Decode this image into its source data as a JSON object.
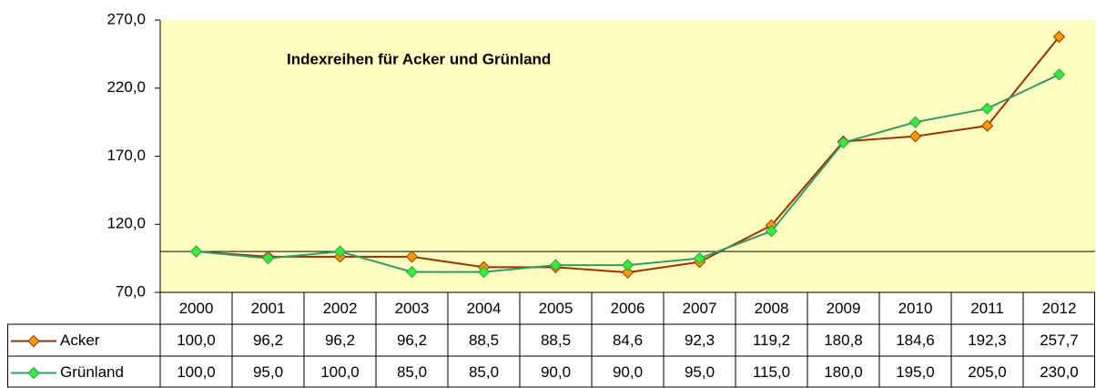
{
  "chart_data": {
    "type": "line",
    "title": "Indexreihen für Acker und Grünland",
    "categories": [
      "2000",
      "2001",
      "2002",
      "2003",
      "2004",
      "2005",
      "2006",
      "2007",
      "2008",
      "2009",
      "2010",
      "2011",
      "2012"
    ],
    "series": [
      {
        "name": "Acker",
        "color": "#993300",
        "marker_color": "#ff9900",
        "values": [
          100.0,
          96.2,
          96.2,
          96.2,
          88.5,
          88.5,
          84.6,
          92.3,
          119.2,
          180.8,
          184.6,
          192.3,
          257.7
        ],
        "value_labels": [
          "100,0",
          "96,2",
          "96,2",
          "96,2",
          "88,5",
          "88,5",
          "84,6",
          "92,3",
          "119,2",
          "180,8",
          "184,6",
          "192,3",
          "257,7"
        ]
      },
      {
        "name": "Grünland",
        "color": "#339966",
        "marker_color": "#33ee33",
        "values": [
          100.0,
          95.0,
          100.0,
          85.0,
          85.0,
          90.0,
          90.0,
          95.0,
          115.0,
          180.0,
          195.0,
          205.0,
          230.0
        ],
        "value_labels": [
          "100,0",
          "95,0",
          "100,0",
          "85,0",
          "85,0",
          "90,0",
          "90,0",
          "95,0",
          "115,0",
          "180,0",
          "195,0",
          "205,0",
          "230,0"
        ]
      }
    ],
    "ylim": [
      70,
      270
    ],
    "yticks": [
      {
        "value": 70,
        "label": "70,0"
      },
      {
        "value": 120,
        "label": "120,0"
      },
      {
        "value": 170,
        "label": "170,0"
      },
      {
        "value": 220,
        "label": "220,0"
      },
      {
        "value": 270,
        "label": "270,0"
      }
    ],
    "reference_line": 100,
    "plot_background": "#ffffc0"
  }
}
